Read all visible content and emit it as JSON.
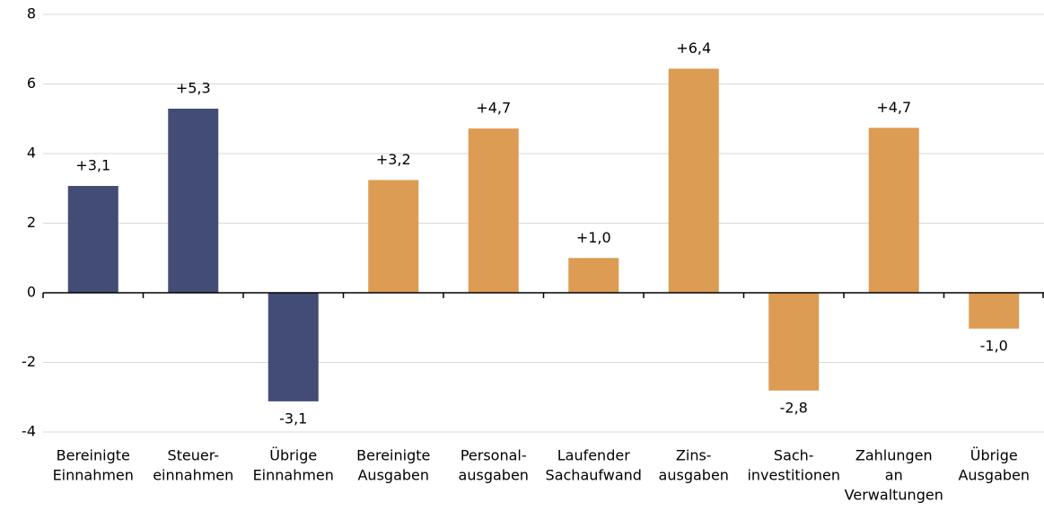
{
  "chart_data": {
    "type": "bar",
    "categories": [
      [
        "Bereinigte",
        "Einnahmen"
      ],
      [
        "Steuer-",
        "einnahmen"
      ],
      [
        "Übrige",
        "Einnahmen"
      ],
      [
        "Bereinigte",
        "Ausgaben"
      ],
      [
        "Personal-",
        "ausgaben"
      ],
      [
        "Laufender",
        "Sachaufwand"
      ],
      [
        "Zins-",
        "ausgaben"
      ],
      [
        "Sach-",
        "investitionen"
      ],
      [
        "Zahlungen",
        "an",
        "Verwaltungen"
      ],
      [
        "Übrige",
        "Ausgaben"
      ]
    ],
    "values": [
      3.07,
      5.29,
      -3.12,
      3.24,
      4.72,
      1.0,
      6.44,
      -2.81,
      4.74,
      -1.03
    ],
    "value_labels": [
      "+3,1",
      "+5,3",
      "-3,1",
      "+3,2",
      "+4,7",
      "+1,0",
      "+6,4",
      "-2,8",
      "+4,7",
      "-1,0"
    ],
    "colors": [
      "#434c74",
      "#434c74",
      "#434c74",
      "#dc9c54",
      "#dc9c54",
      "#dc9c54",
      "#dc9c54",
      "#dc9c54",
      "#dc9c54",
      "#dc9c54"
    ],
    "ylim": [
      -4,
      8
    ],
    "yticks": [
      -4,
      -2,
      0,
      2,
      4,
      6,
      8
    ],
    "grid": true
  }
}
